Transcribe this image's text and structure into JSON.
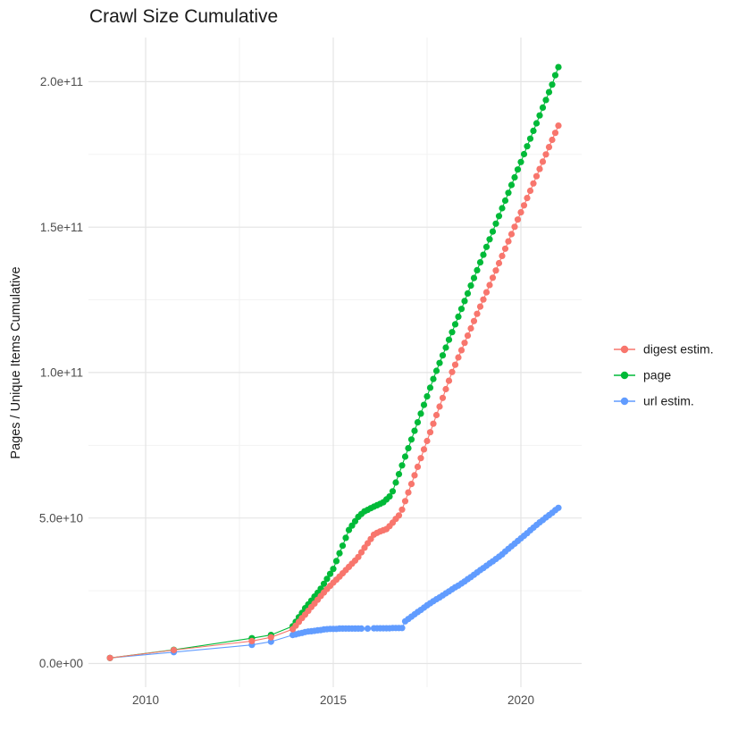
{
  "title": "Crawl Size Cumulative",
  "chart_data": {
    "type": "scatter",
    "title": "Crawl Size Cumulative",
    "xlabel": "",
    "ylabel": "Pages / Unique Items Cumulative",
    "x_unit": "year",
    "y_unit": "count (y values below are in billions, 1e9)",
    "xlim": [
      2008.5,
      2021.6
    ],
    "ylim_e9": [
      0,
      215
    ],
    "grid": true,
    "legend_position": "right",
    "x_ticks": {
      "values": [
        2010,
        2015,
        2020
      ],
      "labels": [
        "2010",
        "2015",
        "2020"
      ],
      "minor_values": [
        2012.5,
        2017.5
      ]
    },
    "y_ticks": {
      "values_e9": [
        0,
        50,
        100,
        150,
        200
      ],
      "labels": [
        "0.0e+00",
        "5.0e+10",
        "1.0e+11",
        "1.5e+11",
        "2.0e+11"
      ],
      "minor_values_e9": [
        25,
        75,
        125,
        175
      ]
    },
    "series": [
      {
        "name": "digest estim.",
        "color": "#F8766D",
        "marker": "circle",
        "x": [
          2009.05,
          2010.75,
          2012.83,
          2013.34,
          2013.92,
          2014.0,
          2014.083,
          2014.167,
          2014.25,
          2014.333,
          2014.417,
          2014.5,
          2014.583,
          2014.667,
          2014.75,
          2014.833,
          2014.917,
          2015.0,
          2015.083,
          2015.167,
          2015.25,
          2015.333,
          2015.417,
          2015.5,
          2015.583,
          2015.667,
          2015.75,
          2015.833,
          2015.917,
          2016.0,
          2016.083,
          2016.167,
          2016.25,
          2016.333,
          2016.417,
          2016.5,
          2016.583,
          2016.667,
          2016.75,
          2016.833,
          2016.917,
          2017.0,
          2017.083,
          2017.167,
          2017.25,
          2017.333,
          2017.417,
          2017.5,
          2017.583,
          2017.667,
          2017.75,
          2017.833,
          2017.917,
          2018.0,
          2018.083,
          2018.167,
          2018.25,
          2018.333,
          2018.417,
          2018.5,
          2018.583,
          2018.667,
          2018.75,
          2018.833,
          2018.917,
          2019.0,
          2019.083,
          2019.167,
          2019.25,
          2019.333,
          2019.417,
          2019.5,
          2019.583,
          2019.667,
          2019.75,
          2019.833,
          2019.917,
          2020.0,
          2020.083,
          2020.167,
          2020.25,
          2020.333,
          2020.417,
          2020.5,
          2020.583,
          2020.667,
          2020.75,
          2020.833,
          2020.917,
          2021.0
        ],
        "y_e9": [
          1.9,
          4.6,
          7.7,
          9.0,
          11.8,
          13.0,
          14.3,
          15.6,
          16.8,
          18.1,
          19.4,
          20.6,
          21.9,
          23.2,
          24.4,
          25.6,
          26.7,
          27.8,
          28.8,
          29.9,
          31.0,
          32.1,
          33.2,
          34.3,
          35.4,
          36.6,
          38.2,
          39.8,
          41.3,
          42.8,
          44.3,
          44.9,
          45.4,
          45.8,
          46.2,
          47.2,
          48.4,
          49.7,
          50.9,
          52.9,
          55.8,
          58.8,
          61.7,
          64.7,
          67.6,
          70.6,
          73.6,
          76.5,
          79.5,
          82.4,
          85.4,
          88.3,
          91.3,
          94.3,
          97.2,
          100.2,
          102.7,
          105.2,
          107.7,
          110.2,
          112.7,
          115.2,
          117.7,
          120.2,
          122.7,
          125.1,
          127.6,
          130.1,
          132.6,
          135.1,
          137.6,
          140.1,
          142.6,
          145.1,
          147.6,
          150.1,
          152.6,
          155.1,
          157.5,
          160.0,
          162.5,
          165.0,
          167.5,
          170.0,
          172.5,
          175.0,
          177.5,
          180.0,
          182.4,
          184.9
        ]
      },
      {
        "name": "page",
        "color": "#00BA38",
        "marker": "circle",
        "x": [
          2009.05,
          2010.75,
          2012.83,
          2013.34,
          2013.92,
          2014.0,
          2014.083,
          2014.167,
          2014.25,
          2014.333,
          2014.417,
          2014.5,
          2014.583,
          2014.667,
          2014.75,
          2014.833,
          2014.917,
          2015.0,
          2015.083,
          2015.167,
          2015.25,
          2015.333,
          2015.417,
          2015.5,
          2015.583,
          2015.667,
          2015.75,
          2015.833,
          2015.917,
          2016.0,
          2016.083,
          2016.167,
          2016.25,
          2016.333,
          2016.417,
          2016.5,
          2016.583,
          2016.667,
          2016.75,
          2016.833,
          2016.917,
          2017.0,
          2017.083,
          2017.167,
          2017.25,
          2017.333,
          2017.417,
          2017.5,
          2017.583,
          2017.667,
          2017.75,
          2017.833,
          2017.917,
          2018.0,
          2018.083,
          2018.167,
          2018.25,
          2018.333,
          2018.417,
          2018.5,
          2018.583,
          2018.667,
          2018.75,
          2018.833,
          2018.917,
          2019.0,
          2019.083,
          2019.167,
          2019.25,
          2019.333,
          2019.417,
          2019.5,
          2019.583,
          2019.667,
          2019.75,
          2019.833,
          2019.917,
          2020.0,
          2020.083,
          2020.167,
          2020.25,
          2020.333,
          2020.417,
          2020.5,
          2020.583,
          2020.667,
          2020.75,
          2020.833,
          2020.917,
          2021.0
        ],
        "y_e9": [
          1.9,
          4.7,
          8.7,
          9.8,
          12.8,
          14.3,
          15.9,
          17.4,
          19.0,
          20.3,
          21.6,
          23.0,
          24.3,
          25.7,
          27.4,
          29.1,
          30.8,
          32.5,
          35.2,
          37.9,
          40.5,
          43.2,
          45.9,
          47.4,
          48.9,
          50.4,
          51.4,
          52.3,
          52.8,
          53.4,
          53.9,
          54.4,
          54.9,
          55.4,
          56.4,
          57.4,
          59.2,
          62.2,
          65.1,
          68.1,
          71.1,
          74.0,
          77.0,
          80.0,
          82.9,
          85.9,
          88.9,
          91.8,
          94.8,
          97.8,
          100.6,
          103.3,
          105.9,
          108.6,
          111.3,
          113.9,
          116.6,
          119.2,
          121.9,
          124.6,
          127.2,
          129.9,
          132.5,
          135.2,
          137.9,
          140.5,
          143.2,
          145.8,
          148.5,
          151.2,
          153.8,
          156.5,
          159.1,
          161.8,
          164.5,
          167.1,
          169.8,
          172.4,
          175.1,
          177.8,
          180.4,
          183.1,
          185.7,
          188.4,
          191.1,
          193.7,
          196.4,
          199.0,
          202.2,
          205.0
        ]
      },
      {
        "name": "url estim.",
        "color": "#619CFF",
        "marker": "circle",
        "x": [
          2009.05,
          2010.75,
          2012.83,
          2013.34,
          2013.92,
          2014.0,
          2014.083,
          2014.167,
          2014.25,
          2014.333,
          2014.417,
          2014.5,
          2014.583,
          2014.667,
          2014.75,
          2014.833,
          2014.917,
          2015.0,
          2015.083,
          2015.167,
          2015.25,
          2015.333,
          2015.417,
          2015.5,
          2015.583,
          2015.667,
          2015.75,
          2015.917,
          2016.083,
          2016.167,
          2016.25,
          2016.333,
          2016.417,
          2016.5,
          2016.583,
          2016.667,
          2016.75,
          2016.833,
          2016.917,
          2017.0,
          2017.083,
          2017.167,
          2017.25,
          2017.333,
          2017.417,
          2017.5,
          2017.583,
          2017.667,
          2017.75,
          2017.833,
          2017.917,
          2018.0,
          2018.083,
          2018.167,
          2018.25,
          2018.333,
          2018.417,
          2018.5,
          2018.583,
          2018.667,
          2018.75,
          2018.833,
          2018.917,
          2019.0,
          2019.083,
          2019.167,
          2019.25,
          2019.333,
          2019.417,
          2019.5,
          2019.583,
          2019.667,
          2019.75,
          2019.833,
          2019.917,
          2020.0,
          2020.083,
          2020.167,
          2020.25,
          2020.333,
          2020.417,
          2020.5,
          2020.583,
          2020.667,
          2020.75,
          2020.833,
          2020.917,
          2021.0
        ],
        "y_e9": [
          1.9,
          3.9,
          6.4,
          7.5,
          9.8,
          10.0,
          10.3,
          10.5,
          10.8,
          11.0,
          11.1,
          11.2,
          11.4,
          11.5,
          11.7,
          11.8,
          11.9,
          11.9,
          11.9,
          12.0,
          12.0,
          12.0,
          12.0,
          12.0,
          12.0,
          12.0,
          12.0,
          12.0,
          12.1,
          12.1,
          12.1,
          12.1,
          12.1,
          12.1,
          12.2,
          12.2,
          12.2,
          12.2,
          14.5,
          15.3,
          16.1,
          16.9,
          17.7,
          18.4,
          19.2,
          20.0,
          20.7,
          21.4,
          22.1,
          22.7,
          23.4,
          24.1,
          24.8,
          25.5,
          26.2,
          26.8,
          27.5,
          28.2,
          29.0,
          29.7,
          30.5,
          31.3,
          32.1,
          32.8,
          33.6,
          34.4,
          35.1,
          35.9,
          36.7,
          37.5,
          38.5,
          39.4,
          40.3,
          41.2,
          42.1,
          43.0,
          43.9,
          44.8,
          45.8,
          46.7,
          47.6,
          48.5,
          49.3,
          50.2,
          51.0,
          51.8,
          52.7,
          53.5
        ]
      }
    ]
  },
  "legend": {
    "title": ""
  }
}
